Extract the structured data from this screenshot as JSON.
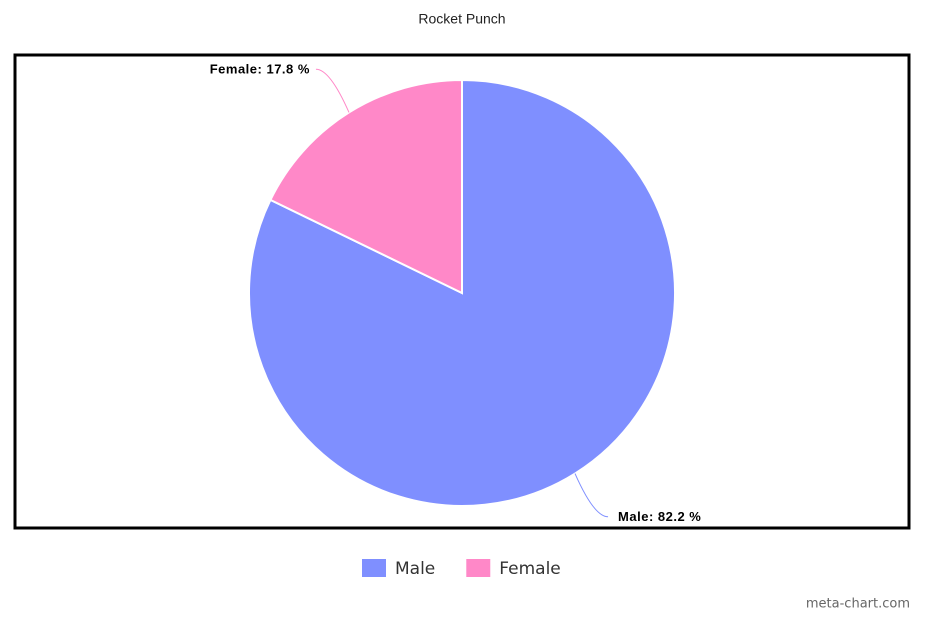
{
  "chart_data": {
    "type": "pie",
    "title": "Rocket Punch",
    "categories": [
      "Male",
      "Female"
    ],
    "values": [
      82.2,
      17.8
    ],
    "value_labels": [
      "Male: 82.2 %",
      "Female: 17.8 %"
    ],
    "colors": [
      "#7f8fff",
      "#ff88c8"
    ],
    "credit": "meta-chart.com"
  }
}
